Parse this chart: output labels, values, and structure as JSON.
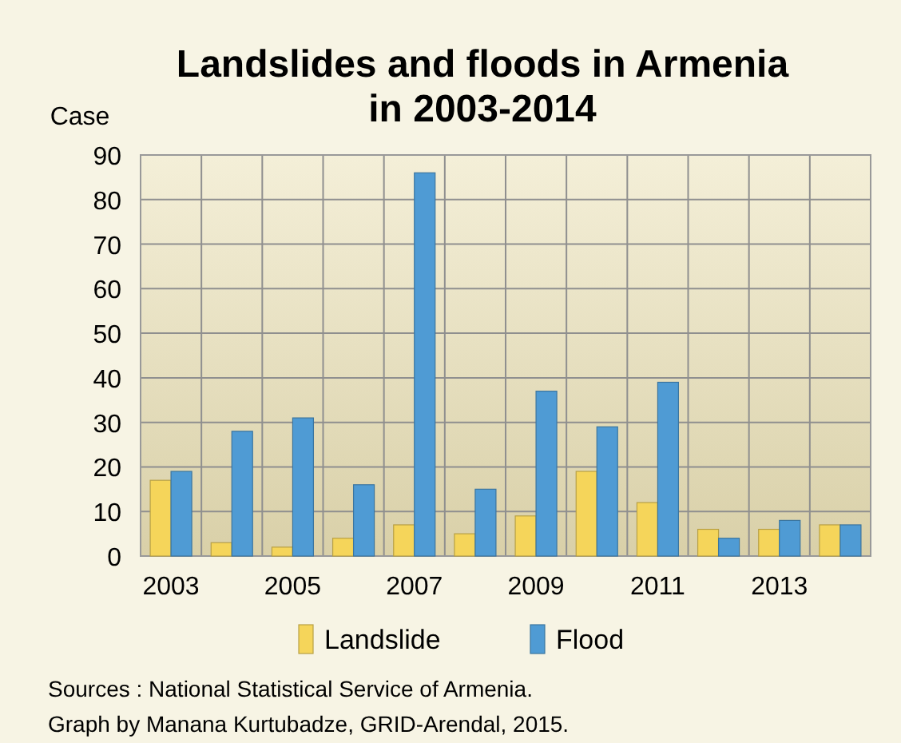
{
  "chart_data": {
    "type": "bar",
    "title": "Landslides and floods in Armenia\nin 2003-2014",
    "ylabel": "Case",
    "categories": [
      "2003",
      null,
      "2005",
      null,
      "2007",
      null,
      "2009",
      null,
      "2011",
      null,
      "2013",
      null
    ],
    "series": [
      {
        "name": "Landslide",
        "color": "#f5d55a",
        "values": [
          17,
          3,
          2,
          4,
          7,
          5,
          9,
          19,
          12,
          6,
          6,
          7
        ]
      },
      {
        "name": "Flood",
        "color": "#4f9bd4",
        "values": [
          19,
          28,
          31,
          16,
          86,
          15,
          37,
          29,
          39,
          4,
          8,
          7
        ]
      }
    ],
    "ylim": [
      0,
      90
    ],
    "yticks": [
      0,
      10,
      20,
      30,
      40,
      50,
      60,
      70,
      80,
      90
    ],
    "grid": true,
    "legend": "bottom",
    "annotations": [
      "Sources : National Statistical Service of Armenia.",
      "Graph by Manana Kurtubadze, GRID-Arendal, 2015."
    ]
  }
}
